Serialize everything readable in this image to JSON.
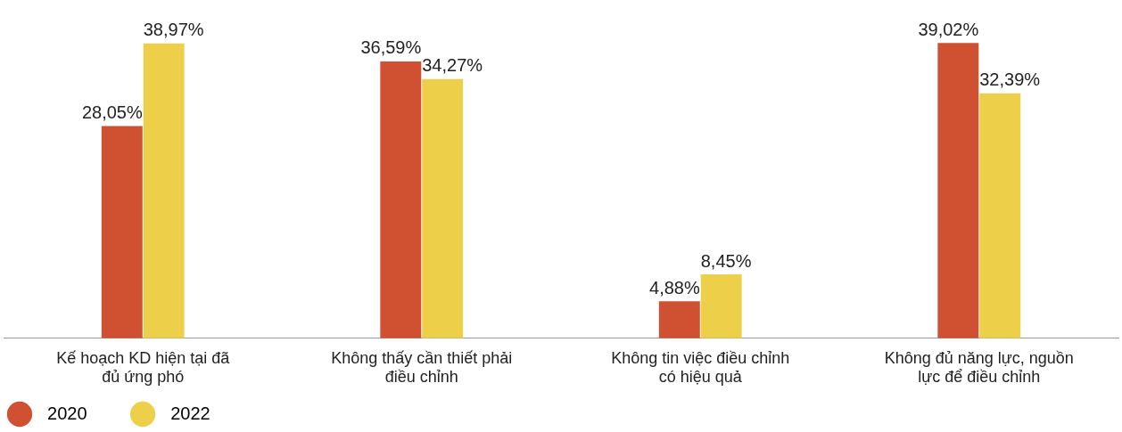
{
  "chart_data": {
    "type": "bar",
    "categories": [
      "Kế hoạch KD hiện tại đã đủ ứng phó",
      "Không thấy cần thiết phải điều chỉnh",
      "Không tin việc điều chỉnh có hiệu quả",
      "Không đủ năng lực, nguồn lực để điều chỉnh"
    ],
    "series": [
      {
        "name": "2020",
        "color": "#cf5132",
        "values": [
          28.05,
          36.59,
          4.88,
          39.02
        ],
        "value_labels": [
          "28,05%",
          "36,59%",
          "4,88%",
          "39,02%"
        ]
      },
      {
        "name": "2022",
        "color": "#eecf4a",
        "values": [
          38.97,
          34.27,
          8.45,
          32.39
        ],
        "value_labels": [
          "38,97%",
          "34,27%",
          "8,45%",
          "32,39%"
        ]
      }
    ],
    "grid": false,
    "legend": "bottom left",
    "tick_labels": "x"
  }
}
